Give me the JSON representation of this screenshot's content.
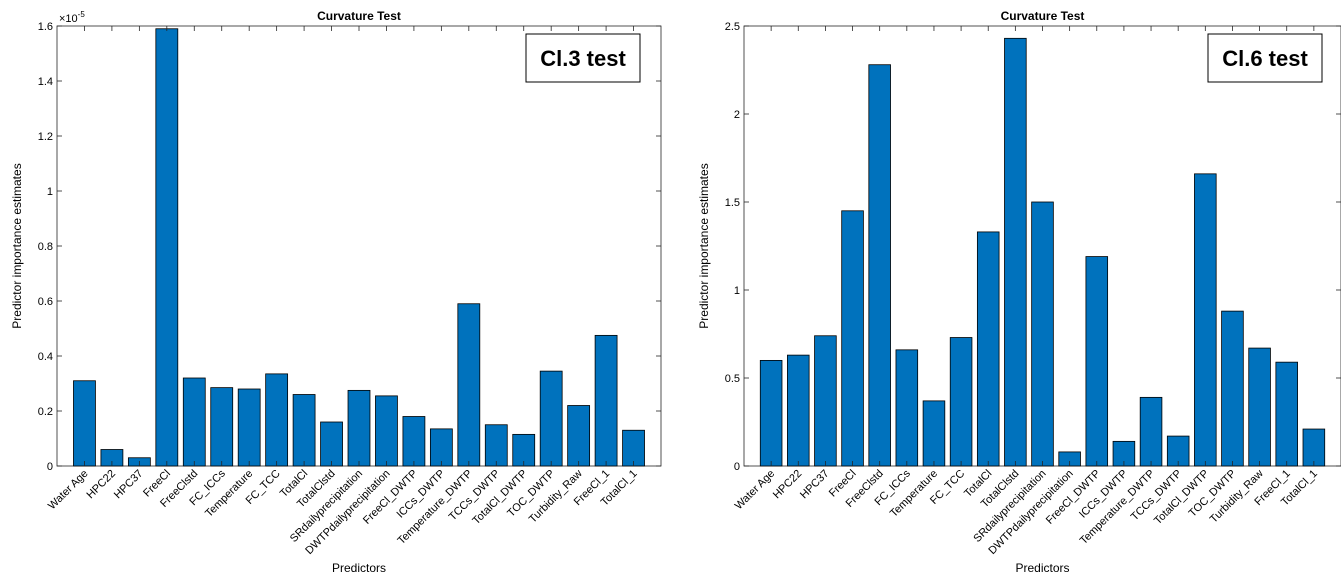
{
  "chart_data": [
    {
      "type": "bar",
      "title": "Curvature Test",
      "xlabel": "Predictors",
      "ylabel": "Predictor importance estimates",
      "exponent_label": "×10",
      "exponent_power": "-5",
      "annotation": "Cl.3 test",
      "ylim": [
        0,
        1.6
      ],
      "yticks": [
        0,
        0.2,
        0.4,
        0.6,
        0.8,
        1,
        1.2,
        1.4,
        1.6
      ],
      "bar_color": "#0072BD",
      "categories": [
        "Water Age",
        "HPC22",
        "HPC37",
        "FreeCl",
        "FreeClstd",
        "FC_ICCs",
        "Temperature",
        "FC_TCC",
        "TotalCl",
        "TotalClstd",
        "SRdailyprecipitation",
        "DWTPdailyprecipitation",
        "FreeCl_DWTP",
        "ICCs_DWTP",
        "Temperature_DWTP",
        "TCCs_DWTP",
        "TotalCl_DWTP",
        "TOC_DWTP",
        "Turbidity_Raw",
        "FreeCl_1",
        "TotalCl_1"
      ],
      "values": [
        0.31,
        0.06,
        0.03,
        1.59,
        0.32,
        0.285,
        0.28,
        0.335,
        0.26,
        0.16,
        0.275,
        0.255,
        0.18,
        0.135,
        0.59,
        0.15,
        0.115,
        0.345,
        0.22,
        0.475,
        0.13
      ]
    },
    {
      "type": "bar",
      "title": "Curvature Test",
      "xlabel": "Predictors",
      "ylabel": "Predictor importance estimates",
      "annotation": "Cl.6 test",
      "ylim": [
        0,
        2.5
      ],
      "yticks": [
        0,
        0.5,
        1,
        1.5,
        2,
        2.5
      ],
      "bar_color": "#0072BD",
      "categories": [
        "Water Age",
        "HPC22",
        "HPC37",
        "FreeCl",
        "FreeClstd",
        "FC_ICCs",
        "Temperature",
        "FC_TCC",
        "TotalCl",
        "TotalClstd",
        "SRdailyprecipitation",
        "DWTPdailyprecipitation",
        "FreeCl_DWTP",
        "ICCs_DWTP",
        "Temperature_DWTP",
        "TCCs_DWTP",
        "TotalCl_DWTP",
        "TOC_DWTP",
        "Turbidity_Raw",
        "FreeCl_1",
        "TotalCl_1"
      ],
      "values": [
        0.6,
        0.63,
        0.74,
        1.45,
        2.28,
        0.66,
        0.37,
        0.73,
        1.33,
        2.43,
        1.5,
        0.08,
        1.19,
        0.14,
        0.39,
        0.17,
        1.66,
        0.88,
        0.67,
        0.59,
        0.21
      ]
    }
  ]
}
